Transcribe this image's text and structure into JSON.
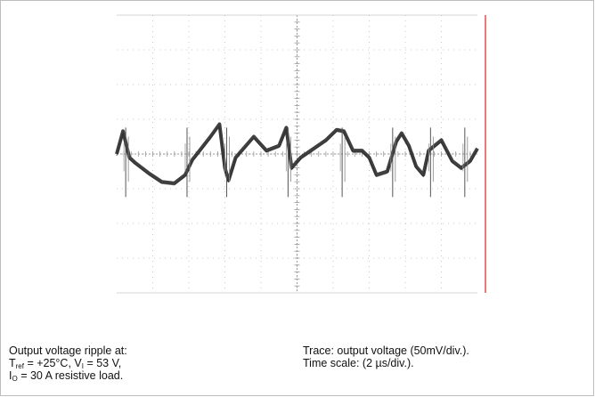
{
  "chart_data": {
    "type": "line",
    "title": "",
    "xlabel": "",
    "ylabel": "",
    "grid": true,
    "grid_divisions": {
      "x": 10,
      "y": 8
    },
    "time_per_div_us": 2,
    "volts_per_div_mV": 50,
    "x_range_us": [
      0,
      20
    ],
    "y_range_mV": [
      -200,
      200
    ],
    "series": [
      {
        "x_us": [
          0.0,
          0.35,
          0.7,
          1.0,
          1.8,
          2.5,
          3.2,
          3.8,
          4.2,
          4.6,
          5.2,
          5.7,
          6.0,
          6.2,
          6.6,
          7.6,
          8.3,
          9.0,
          9.4,
          9.7,
          10.2,
          11.6,
          12.2,
          12.6,
          13.1,
          13.6,
          14.0,
          14.4,
          15.0,
          15.5,
          15.8,
          16.2,
          16.6,
          17.0,
          17.3,
          18.0,
          18.6,
          19.1,
          19.6,
          20.0
        ],
        "y_mV": [
          0,
          33,
          -5,
          -12,
          -28,
          -40,
          -42,
          -30,
          -8,
          5,
          25,
          43,
          -20,
          -38,
          -5,
          25,
          5,
          12,
          38,
          -20,
          -5,
          20,
          35,
          33,
          5,
          5,
          -5,
          -30,
          -25,
          18,
          30,
          12,
          -18,
          -30,
          5,
          20,
          -10,
          -20,
          -10,
          8
        ]
      }
    ],
    "spikes_us": [
      0.5,
      3.9,
      6.1,
      9.5,
      12.5,
      15.3,
      17.4,
      19.3
    ]
  },
  "caption": {
    "left": {
      "line1": "Output voltage ripple  at:",
      "t": "T",
      "t_sub": "ref",
      "t_rest": " = +25°C, V",
      "v_sub": "I",
      "v_rest": " = 53 V,",
      "i": "I",
      "i_sub": "O",
      "i_rest": " = 30 A resistive load."
    },
    "right": {
      "line1": "Trace: output voltage (50mV/div.).",
      "line2": "Time scale: (2 µs/div.)."
    }
  },
  "colors": {
    "grid": "#c8c8c8",
    "axis": "#9a9a9a",
    "trace": "#2b2b2b",
    "marker": "#e02020"
  }
}
